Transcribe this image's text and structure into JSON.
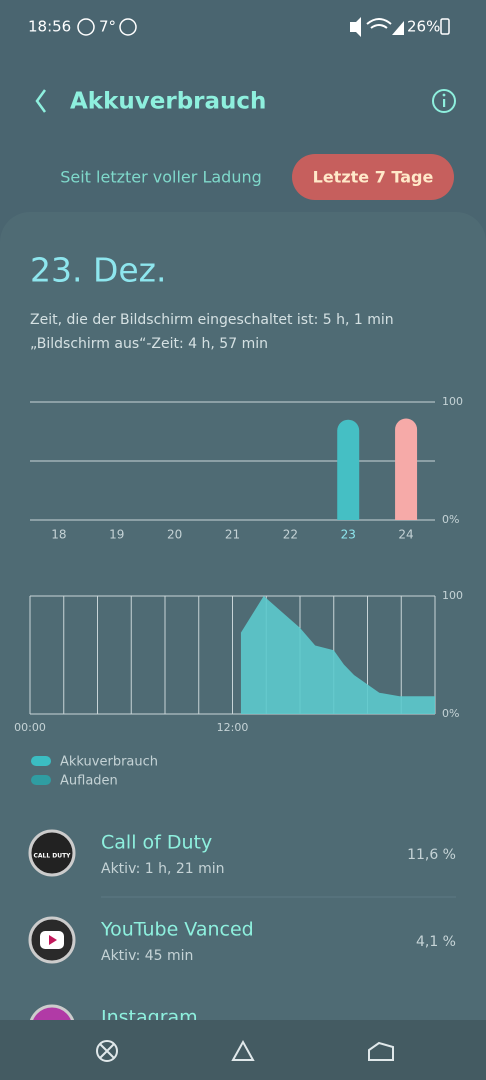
{
  "status_bar": {
    "time": "18:56",
    "temperature": "7°",
    "battery": "26%"
  },
  "header": {
    "title": "Akkuverbrauch"
  },
  "tabs": [
    "Seit letzter voller Ladung",
    "Letzte 7 Tage"
  ],
  "summary": {
    "date": "23. Dez.",
    "screen_on": "Zeit, die der Bildschirm eingeschaltet ist: 5 h, 1 min",
    "screen_off": "„Bildschirm aus“-Zeit: 4 h, 57 min"
  },
  "chart_data": [
    {
      "type": "bar",
      "categories": [
        "18",
        "19",
        "20",
        "21",
        "22",
        "23",
        "24"
      ],
      "values": [
        null,
        null,
        null,
        null,
        null,
        85,
        86
      ],
      "colors": [
        "#45bfc4",
        "#45bfc4",
        "#45bfc4",
        "#45bfc4",
        "#45bfc4",
        "#45bfc4",
        "#f6aaa8"
      ],
      "ylim": [
        0,
        100
      ],
      "yticks": [
        {
          "value": 0,
          "label": "0%"
        },
        {
          "value": 50
        },
        100
      ],
      "grid": true
    },
    {
      "type": "area",
      "x": [
        12.5,
        13.85,
        14.8,
        16,
        16.9,
        18,
        18.6,
        19.2,
        20.7,
        21.9,
        24
      ],
      "values": [
        69,
        100,
        88,
        73,
        58,
        54,
        42,
        33,
        18,
        15,
        15
      ],
      "color": "#5ccacd",
      "xlim": [
        0,
        24
      ],
      "ylim": [
        0,
        100
      ],
      "xticks": [
        {
          "value": 0,
          "label": "00:00"
        },
        {
          "value": 2
        },
        {
          "value": 4
        },
        {
          "value": 6
        },
        {
          "value": 8
        },
        {
          "value": 10
        },
        {
          "value": 12,
          "label": "12:00"
        },
        {
          "value": 14
        },
        {
          "value": 16
        },
        {
          "value": 18
        },
        {
          "value": 20
        },
        {
          "value": 22
        },
        {
          "value": 24
        }
      ],
      "yticks": [
        {
          "value": 0,
          "label": "0%"
        },
        100
      ],
      "grid": true
    }
  ],
  "legend": [
    "Akkuverbrauch",
    "Aufladen"
  ],
  "apps": [
    {
      "name": "Call of Duty",
      "detail": "Aktiv: 1 h, 21 min",
      "usage": "11,6 %"
    },
    {
      "name": "YouTube Vanced",
      "detail": "Aktiv: 45 min",
      "usage": "4,1 %"
    },
    {
      "name": "Instagram"
    }
  ]
}
